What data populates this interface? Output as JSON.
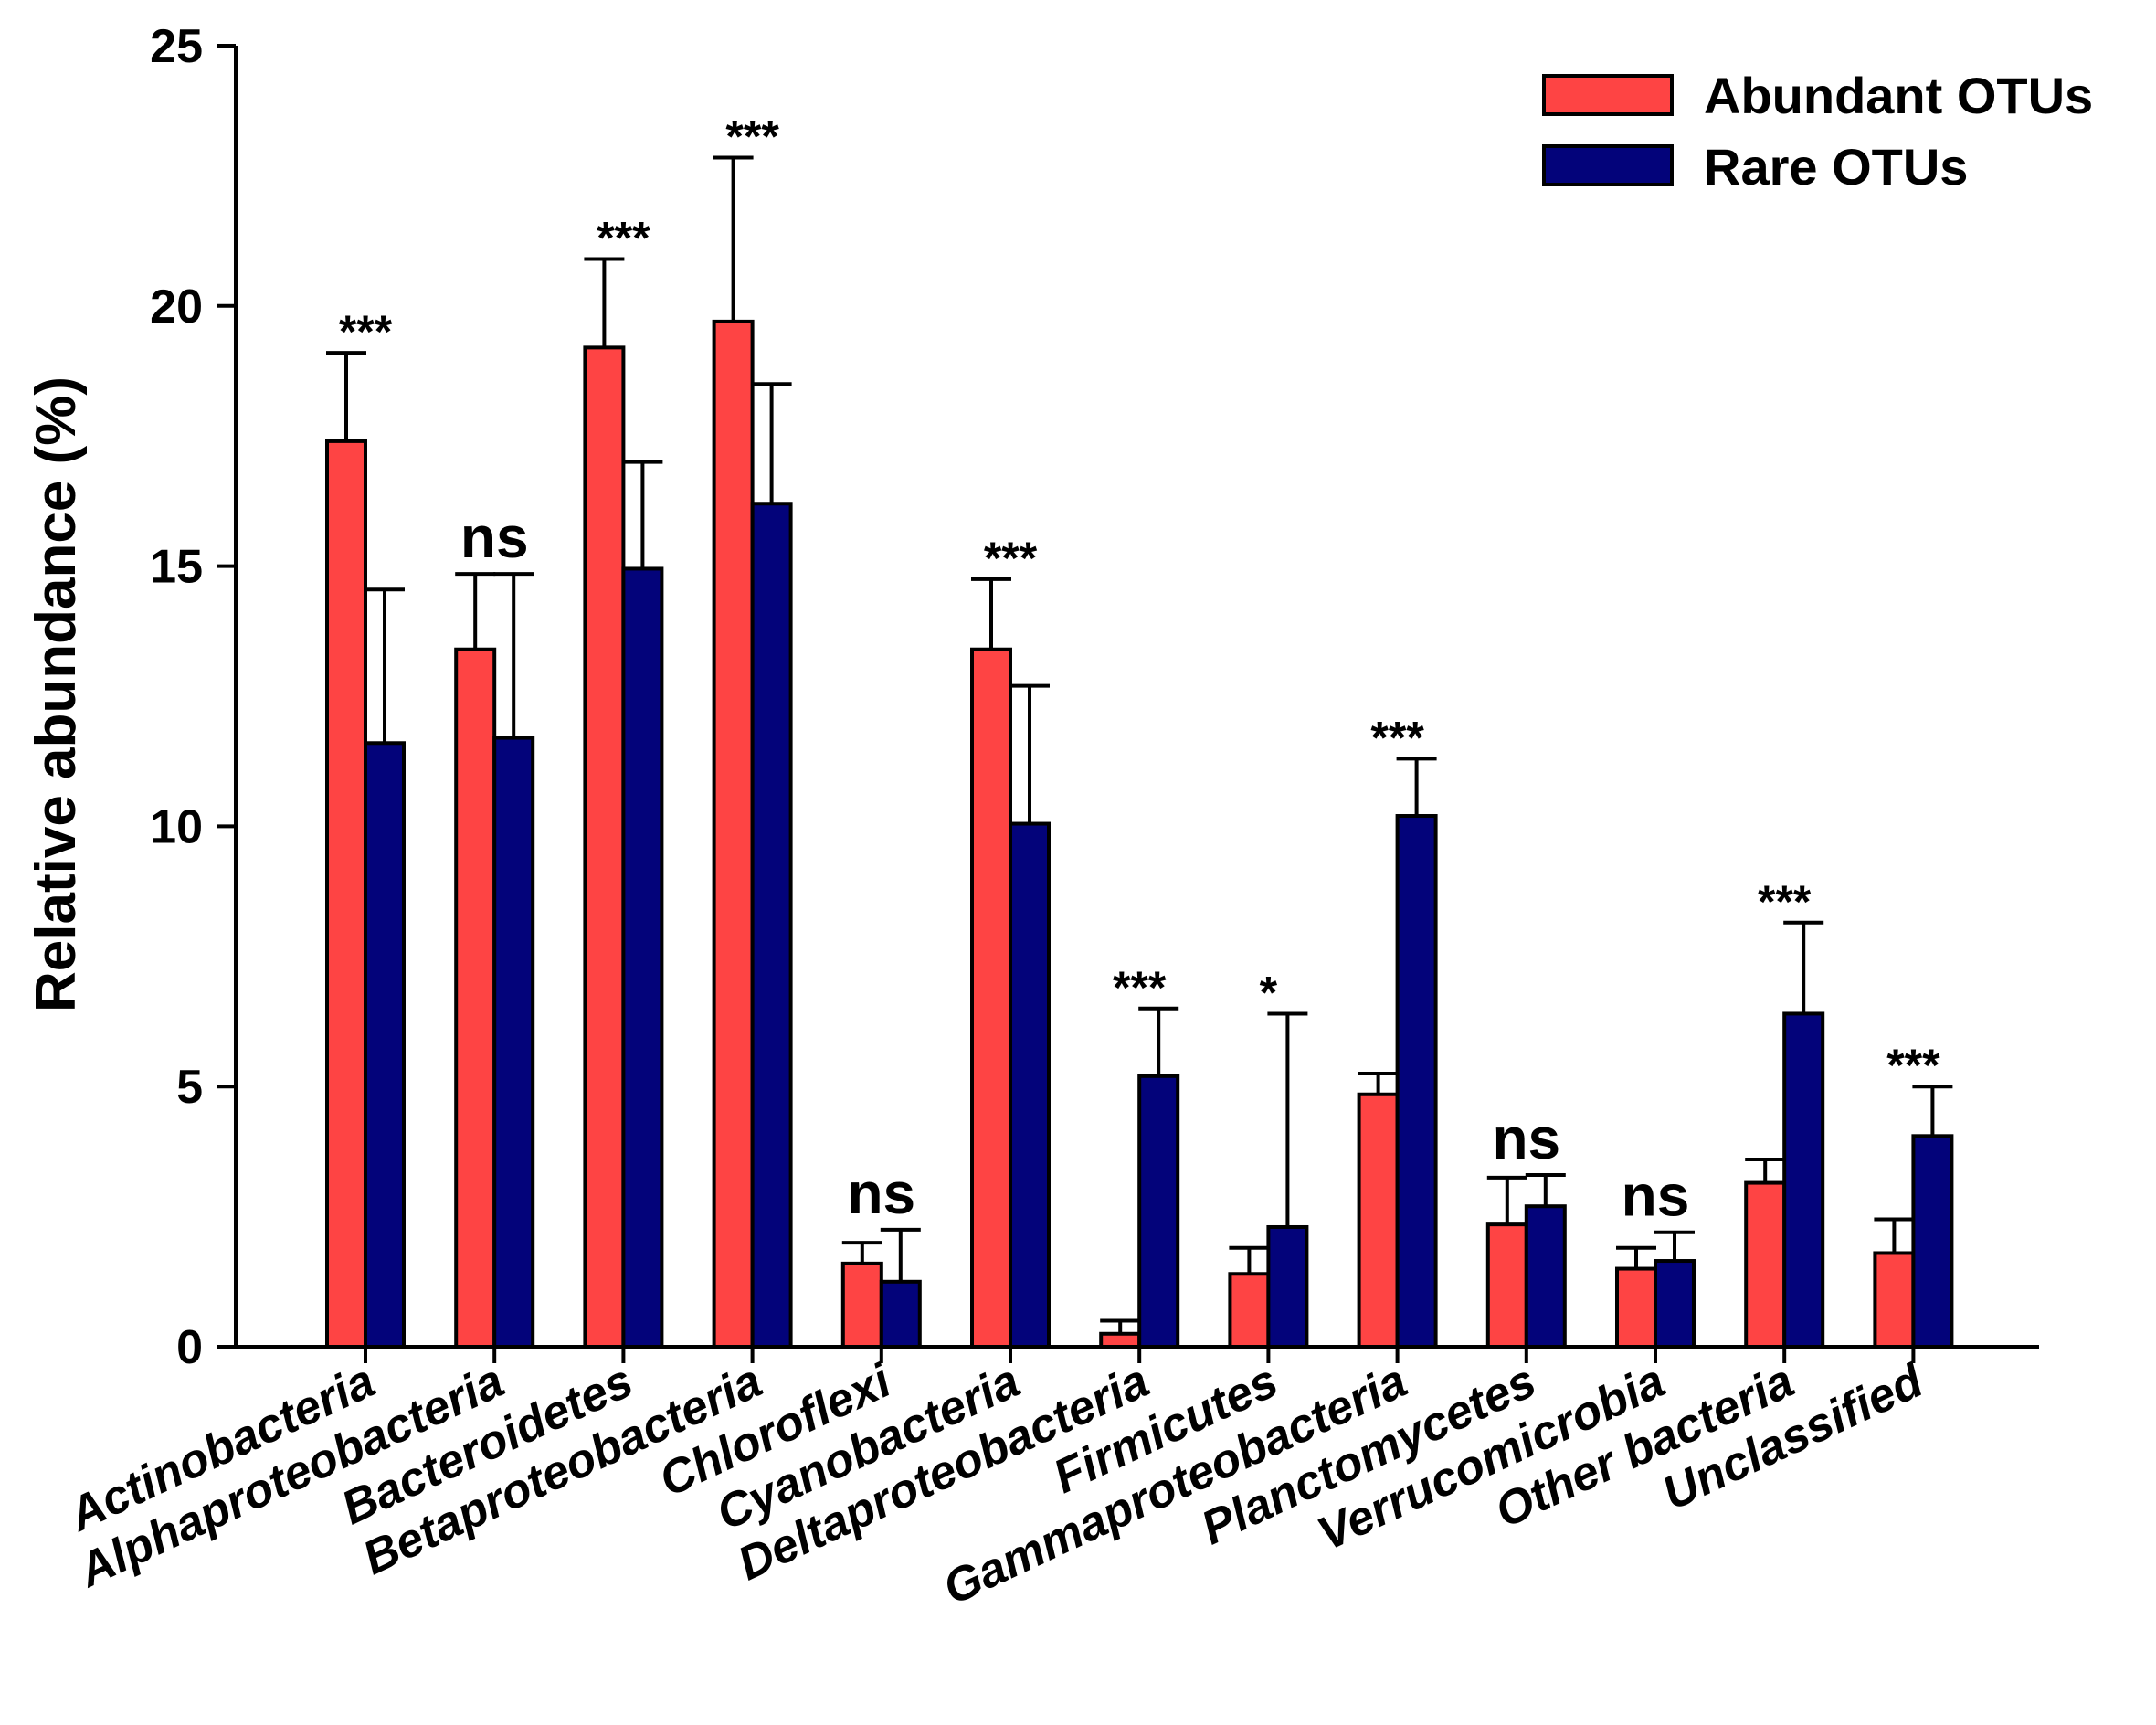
{
  "chart_data": {
    "type": "bar",
    "title": "",
    "xlabel": "",
    "ylabel": "Relative abundance (%)",
    "ylim": [
      0,
      25
    ],
    "yticks": [
      "0",
      "5",
      "10",
      "15",
      "20",
      "25"
    ],
    "grid": false,
    "legend_position": "top-right",
    "categories": [
      "Actinobacteria",
      "Alphaproteobacteria",
      "Bacteroidetes",
      "Betaproteobacteria",
      "Chloroflexi",
      "Cyanobacteria",
      "Deltaproteobacteria",
      "Firmicutes",
      "Gammaproteobacteria",
      "Planctomycetes",
      "Verrucomicrobia",
      "Other bacteria",
      "Unclassified"
    ],
    "series": [
      {
        "name": "Abundant OTUs",
        "color": "#fe4444",
        "values": [
          17.4,
          13.4,
          19.2,
          19.7,
          1.6,
          13.4,
          0.25,
          1.4,
          4.85,
          2.35,
          1.5,
          3.15,
          1.8
        ],
        "errors": [
          1.7,
          1.45,
          1.7,
          3.15,
          0.4,
          1.35,
          0.25,
          0.5,
          0.4,
          0.9,
          0.4,
          0.45,
          0.65
        ]
      },
      {
        "name": "Rare OTUs",
        "color": "#03037a",
        "values": [
          11.6,
          11.7,
          14.95,
          16.2,
          1.25,
          10.05,
          5.2,
          2.3,
          10.2,
          2.7,
          1.65,
          6.4,
          4.05
        ],
        "errors": [
          2.95,
          3.15,
          2.05,
          2.3,
          1.0,
          2.65,
          1.3,
          4.1,
          1.1,
          0.6,
          0.55,
          1.75,
          0.95
        ]
      }
    ],
    "significance": [
      "***",
      "ns",
      "***",
      "***",
      "ns",
      "***",
      "***",
      "*",
      "***",
      "ns",
      "ns",
      "***",
      "***"
    ]
  }
}
